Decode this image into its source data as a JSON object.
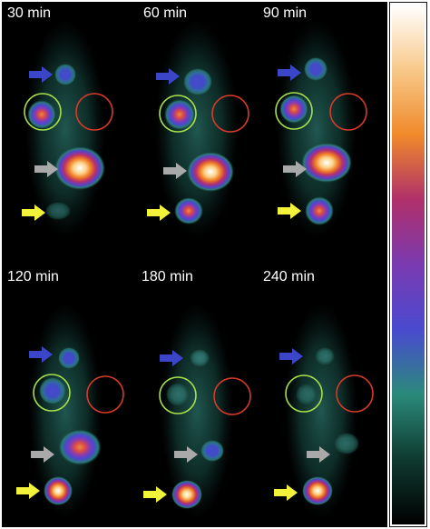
{
  "panels": [
    {
      "time_label": "30 min"
    },
    {
      "time_label": "60 min"
    },
    {
      "time_label": "90 min"
    },
    {
      "time_label": "120 min"
    },
    {
      "time_label": "180 min"
    },
    {
      "time_label": "240 min"
    }
  ],
  "colors": {
    "arrow_blue": "#3b45c8",
    "arrow_gray": "#a9a9a9",
    "arrow_yellow": "#f2f23a",
    "circle_green": "#a8e04a",
    "circle_red": "#d83a2a",
    "colorbar_stops": [
      "#ffffff",
      "#f7c98a",
      "#f08a2a",
      "#b0306a",
      "#7a3ab0",
      "#4a4ad0",
      "#2a8a7a",
      "#0f3a30",
      "#000000"
    ]
  }
}
